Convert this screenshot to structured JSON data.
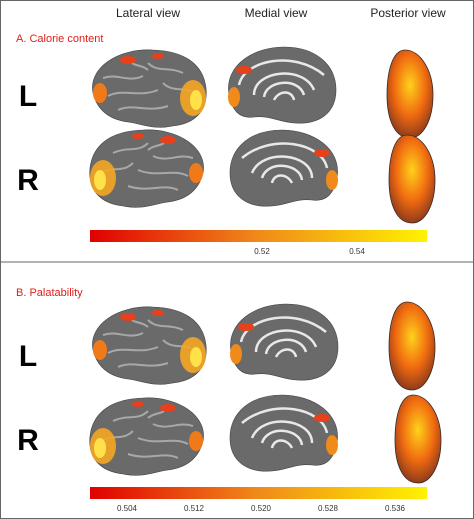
{
  "headers": [
    "Lateral view",
    "Medial view",
    "Posterior view"
  ],
  "panels": [
    {
      "title": "A. Calorie content",
      "rows": [
        "L",
        "R"
      ],
      "colorbar_ticks": [
        "0.52",
        "0.54"
      ]
    },
    {
      "title": "B. Palatability",
      "rows": [
        "L",
        "R"
      ],
      "colorbar_ticks": [
        "0.504",
        "0.512",
        "0.520",
        "0.528",
        "0.536"
      ]
    }
  ]
}
